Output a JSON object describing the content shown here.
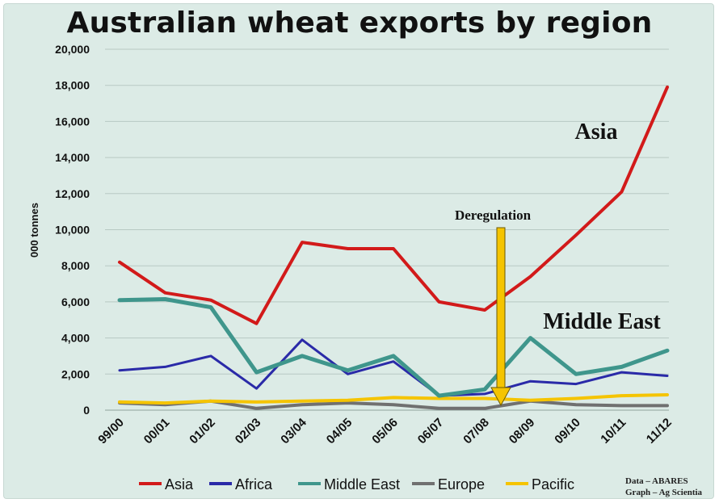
{
  "chart_data": {
    "type": "line",
    "title": "Australian wheat exports by region",
    "ylabel": "000 tonnes",
    "xlabel": "",
    "ylim": [
      0,
      20000
    ],
    "yticks": [
      "0",
      "2,000",
      "4,000",
      "6,000",
      "8,000",
      "10,000",
      "12,000",
      "14,000",
      "16,000",
      "18,000",
      "20,000"
    ],
    "categories": [
      "99/00",
      "00/01",
      "01/02",
      "02/03",
      "03/04",
      "04/05",
      "05/06",
      "06/07",
      "07/08",
      "08/09",
      "09/10",
      "10/11",
      "11/12"
    ],
    "grid": "horizontal",
    "legend_position": "bottom",
    "series": [
      {
        "name": "Asia",
        "color": "#d21a1a",
        "values": [
          8200,
          6500,
          6100,
          4800,
          9300,
          8950,
          8950,
          6000,
          5550,
          7400,
          9700,
          12100,
          17900
        ]
      },
      {
        "name": "Africa",
        "color": "#2a2aa8",
        "values": [
          2200,
          2400,
          3000,
          1200,
          3900,
          2000,
          2700,
          800,
          900,
          1600,
          1450,
          2100,
          1900
        ]
      },
      {
        "name": "Middle East",
        "color": "#3f968c",
        "values": [
          6100,
          6150,
          5700,
          2100,
          3000,
          2200,
          3000,
          800,
          1150,
          4000,
          2000,
          2400,
          3300
        ]
      },
      {
        "name": "Europe",
        "color": "#707070",
        "values": [
          400,
          300,
          500,
          100,
          300,
          400,
          300,
          100,
          100,
          500,
          300,
          250,
          250
        ]
      },
      {
        "name": "Pacific",
        "color": "#f5c400",
        "values": [
          450,
          400,
          500,
          450,
          500,
          550,
          700,
          650,
          650,
          550,
          650,
          800,
          850
        ]
      }
    ],
    "annotations": {
      "asia": "Asia",
      "middle_east": "Middle East",
      "deregulation": "Deregulation"
    },
    "credits": [
      "Data – ABARES",
      "Graph – Ag Scientia"
    ]
  }
}
